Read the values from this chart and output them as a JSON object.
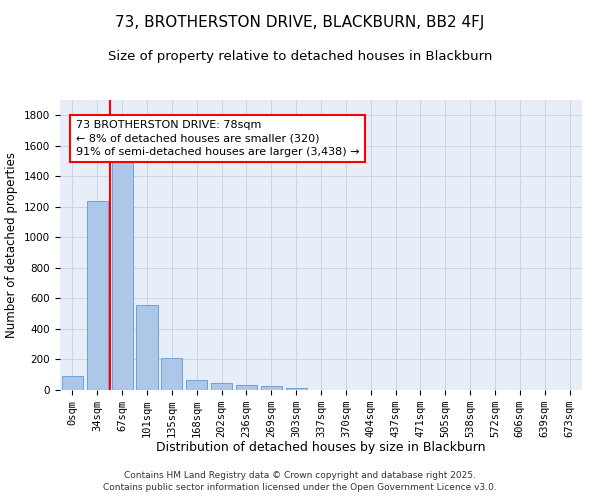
{
  "title": "73, BROTHERSTON DRIVE, BLACKBURN, BB2 4FJ",
  "subtitle": "Size of property relative to detached houses in Blackburn",
  "xlabel": "Distribution of detached houses by size in Blackburn",
  "ylabel": "Number of detached properties",
  "footer_line1": "Contains HM Land Registry data © Crown copyright and database right 2025.",
  "footer_line2": "Contains public sector information licensed under the Open Government Licence v3.0.",
  "bar_labels": [
    "0sqm",
    "34sqm",
    "67sqm",
    "101sqm",
    "135sqm",
    "168sqm",
    "202sqm",
    "236sqm",
    "269sqm",
    "303sqm",
    "337sqm",
    "370sqm",
    "404sqm",
    "437sqm",
    "471sqm",
    "505sqm",
    "538sqm",
    "572sqm",
    "606sqm",
    "639sqm",
    "673sqm"
  ],
  "bar_values": [
    90,
    1240,
    1510,
    560,
    210,
    65,
    45,
    35,
    28,
    14,
    0,
    0,
    0,
    0,
    0,
    0,
    0,
    0,
    0,
    0,
    0
  ],
  "bar_color": "#aec6e8",
  "bar_edgecolor": "#5b9bd5",
  "grid_color": "#c8d4e8",
  "bg_color": "#e8eef8",
  "annotation_text": "73 BROTHERSTON DRIVE: 78sqm\n← 8% of detached houses are smaller (320)\n91% of semi-detached houses are larger (3,438) →",
  "annotation_box_edgecolor": "red",
  "vline_x": 1.5,
  "vline_color": "red",
  "ylim": [
    0,
    1900
  ],
  "yticks": [
    0,
    200,
    400,
    600,
    800,
    1000,
    1200,
    1400,
    1600,
    1800
  ],
  "title_fontsize": 11,
  "subtitle_fontsize": 9.5,
  "xlabel_fontsize": 9,
  "ylabel_fontsize": 8.5,
  "annotation_fontsize": 8,
  "tick_fontsize": 7.5,
  "footer_fontsize": 6.5
}
